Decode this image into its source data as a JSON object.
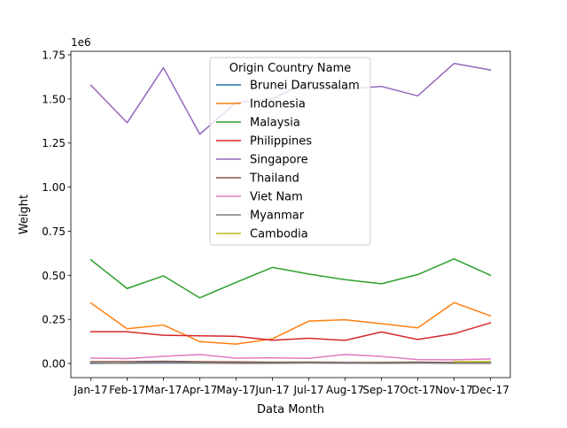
{
  "chart_data": {
    "type": "line",
    "title": "",
    "xlabel": "Data Month",
    "ylabel": "Weight",
    "y_offset_label": "1e6",
    "categories": [
      "Jan-17",
      "Feb-17",
      "Mar-17",
      "Apr-17",
      "May-17",
      "Jun-17",
      "Jul-17",
      "Aug-17",
      "Sep-17",
      "Oct-17",
      "Nov-17",
      "Dec-17"
    ],
    "ylim": [
      -0.08,
      1.77
    ],
    "yticks": [
      0.0,
      0.25,
      0.5,
      0.75,
      1.0,
      1.25,
      1.5,
      1.75
    ],
    "ytick_labels": [
      "0.00",
      "0.25",
      "0.50",
      "0.75",
      "1.00",
      "1.25",
      "1.50",
      "1.75"
    ],
    "grid": false,
    "legend": {
      "title": "Origin Country Name",
      "placement": "upper center"
    },
    "series": [
      {
        "name": "Brunei Darussalam",
        "color": "#1f77b4",
        "values": [
          0.0,
          0.002,
          0.005,
          0.003,
          0.003,
          0.002,
          0.004,
          0.002,
          0.003,
          0.005,
          0.003,
          0.004
        ]
      },
      {
        "name": "Indonesia",
        "color": "#ff7f0e",
        "values": [
          0.343,
          0.197,
          0.218,
          0.124,
          0.11,
          0.14,
          0.24,
          0.248,
          0.226,
          0.202,
          0.345,
          0.27
        ]
      },
      {
        "name": "Malaysia",
        "color": "#2ca02c",
        "values": [
          0.588,
          0.425,
          0.497,
          0.372,
          0.46,
          0.545,
          0.507,
          0.475,
          0.452,
          0.504,
          0.593,
          0.5
        ]
      },
      {
        "name": "Philippines",
        "color": "#d62728",
        "values": [
          0.18,
          0.18,
          0.16,
          0.157,
          0.154,
          0.132,
          0.143,
          0.131,
          0.179,
          0.136,
          0.169,
          0.23
        ]
      },
      {
        "name": "Singapore",
        "color": "#9467bd",
        "values": [
          1.578,
          1.365,
          1.677,
          1.3,
          1.48,
          1.5,
          1.6,
          1.555,
          1.571,
          1.517,
          1.701,
          1.664
        ]
      },
      {
        "name": "Thailand",
        "color": "#8c564b",
        "values": [
          0.01,
          0.011,
          0.013,
          0.01,
          0.009,
          0.007,
          0.008,
          0.006,
          0.006,
          0.008,
          0.006,
          0.007
        ]
      },
      {
        "name": "Viet Nam",
        "color": "#e377c2",
        "values": [
          0.03,
          0.028,
          0.04,
          0.051,
          0.03,
          0.032,
          0.029,
          0.051,
          0.04,
          0.022,
          0.021,
          0.026
        ]
      },
      {
        "name": "Myanmar",
        "color": "#7f7f7f",
        "values": [
          0.002,
          0.001,
          0.002,
          0.002,
          0.001,
          0.001,
          0.003,
          0.002,
          0.001,
          0.002,
          0.001,
          0.001
        ]
      },
      {
        "name": "Cambodia",
        "color": "#bcbd22",
        "values": [
          null,
          null,
          null,
          null,
          null,
          null,
          null,
          null,
          null,
          null,
          0.01,
          0.011
        ]
      }
    ]
  }
}
